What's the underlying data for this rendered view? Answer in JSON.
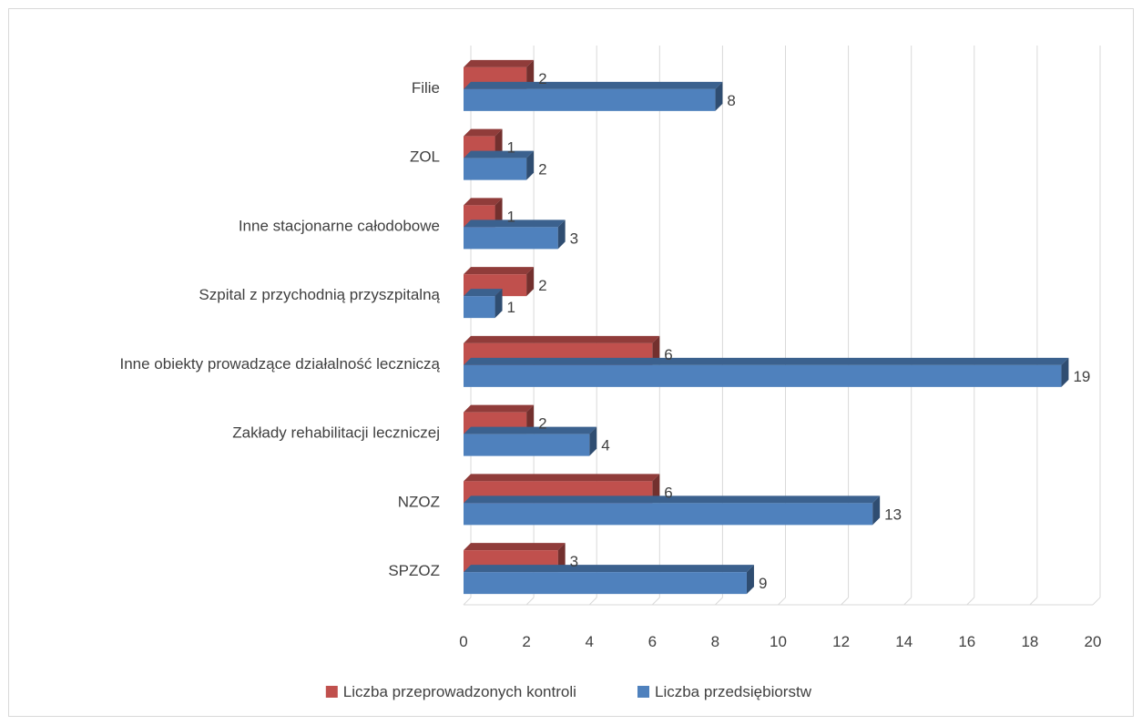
{
  "chart_data": {
    "type": "bar",
    "orientation": "horizontal",
    "style": "3d-clustered",
    "categories": [
      "SPZOZ",
      "NZOZ",
      "Zakłady rehabilitacji leczniczej",
      "Inne obiekty prowadzące działalność leczniczą",
      "Szpital z przychodnią przyszpitalną",
      "Inne stacjonarne całodobowe",
      "ZOL",
      "Filie"
    ],
    "series": [
      {
        "name": "Liczba przeprowadzonych kontroli",
        "values": [
          3,
          6,
          2,
          6,
          2,
          1,
          1,
          2
        ],
        "color": "#c0504d"
      },
      {
        "name": "Liczba przedsiębiorstw",
        "values": [
          9,
          13,
          4,
          19,
          1,
          3,
          2,
          8
        ],
        "color": "#4f81bd"
      }
    ],
    "xlim": [
      0,
      20
    ],
    "xticks": [
      "0",
      "2",
      "4",
      "6",
      "8",
      "10",
      "12",
      "14",
      "16",
      "18",
      "20"
    ],
    "grid": true,
    "legend": "bottom"
  }
}
